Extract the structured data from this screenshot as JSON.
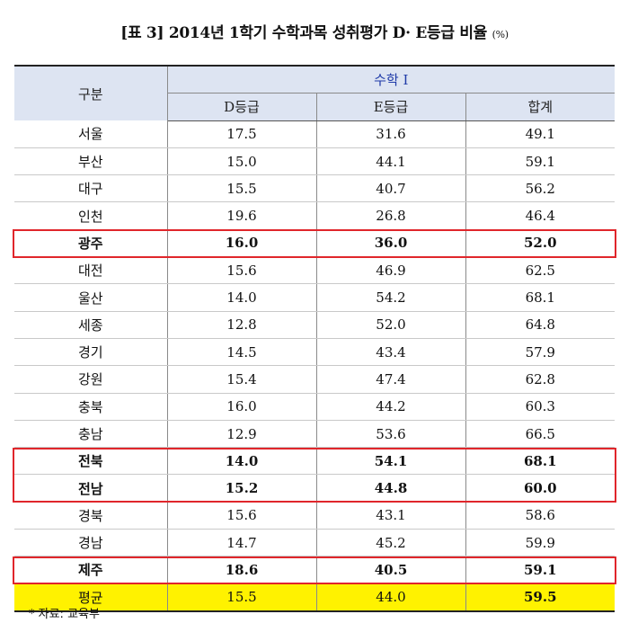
{
  "title": "[표 3] 2014년 1학기 수학과목 성취평가 D· E등급 비율",
  "unit": "(%)",
  "header": {
    "row_label": "구분",
    "group_label": "수학 I",
    "columns": [
      "D등급",
      "E등급",
      "합계"
    ]
  },
  "rows": [
    {
      "region": "서울",
      "d": "17.5",
      "e": "31.6",
      "total": "49.1"
    },
    {
      "region": "부산",
      "d": "15.0",
      "e": "44.1",
      "total": "59.1"
    },
    {
      "region": "대구",
      "d": "15.5",
      "e": "40.7",
      "total": "56.2"
    },
    {
      "region": "인천",
      "d": "19.6",
      "e": "26.8",
      "total": "46.4"
    },
    {
      "region": "광주",
      "d": "16.0",
      "e": "36.0",
      "total": "52.0",
      "highlighted": true
    },
    {
      "region": "대전",
      "d": "15.6",
      "e": "46.9",
      "total": "62.5"
    },
    {
      "region": "울산",
      "d": "14.0",
      "e": "54.2",
      "total": "68.1"
    },
    {
      "region": "세종",
      "d": "12.8",
      "e": "52.0",
      "total": "64.8"
    },
    {
      "region": "경기",
      "d": "14.5",
      "e": "43.4",
      "total": "57.9"
    },
    {
      "region": "강원",
      "d": "15.4",
      "e": "47.4",
      "total": "62.8"
    },
    {
      "region": "충북",
      "d": "16.0",
      "e": "44.2",
      "total": "60.3"
    },
    {
      "region": "충남",
      "d": "12.9",
      "e": "53.6",
      "total": "66.5"
    },
    {
      "region": "전북",
      "d": "14.0",
      "e": "54.1",
      "total": "68.1",
      "highlighted": true
    },
    {
      "region": "전남",
      "d": "15.2",
      "e": "44.8",
      "total": "60.0",
      "highlighted": true
    },
    {
      "region": "경북",
      "d": "15.6",
      "e": "43.1",
      "total": "58.6"
    },
    {
      "region": "경남",
      "d": "14.7",
      "e": "45.2",
      "total": "59.9"
    },
    {
      "region": "제주",
      "d": "18.6",
      "e": "40.5",
      "total": "59.1",
      "highlighted": true
    }
  ],
  "average": {
    "region": "평균",
    "d": "15.5",
    "e": "44.0",
    "total": "59.5"
  },
  "source_note": "* 자료: 교육부",
  "colors": {
    "header_bg": "#dde4f2",
    "group_label": "#1f3aa8",
    "highlight_border": "#e0262b",
    "average_bg": "#fff200"
  }
}
